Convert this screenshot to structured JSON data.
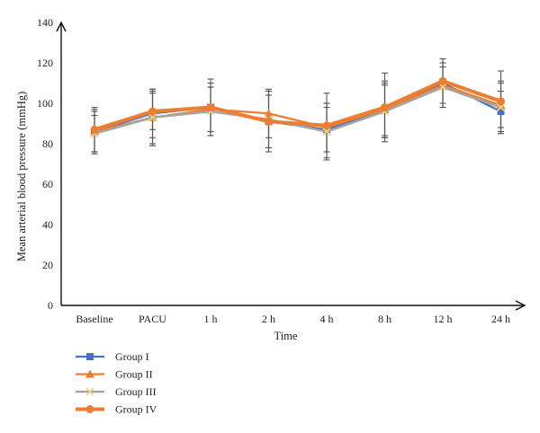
{
  "chart_data": {
    "type": "line",
    "xlabel": "Time",
    "ylabel": "Mean arterial blood pressure (mmHg)",
    "ylim": [
      0,
      140
    ],
    "yticks": [
      0,
      20,
      40,
      60,
      80,
      100,
      120,
      140
    ],
    "categories": [
      "Baseline",
      "PACU",
      "1 h",
      "2 h",
      "4 h",
      "8 h",
      "12 h",
      "24 h"
    ],
    "grid": false,
    "legend_position": "bottom-left",
    "error_bars": true,
    "series": [
      {
        "name": "Group I",
        "color": "#4472C4",
        "marker": "square",
        "values": [
          86,
          95,
          98,
          91,
          87,
          97,
          110,
          96
        ],
        "error": [
          11,
          12,
          12,
          13,
          11,
          13,
          12,
          10
        ]
      },
      {
        "name": "Group II",
        "color": "#ED7D31",
        "marker": "triangle",
        "values": [
          86,
          93,
          97,
          95,
          88,
          97,
          109,
          99
        ],
        "error": [
          10,
          13,
          11,
          12,
          12,
          14,
          11,
          11
        ]
      },
      {
        "name": "Group III",
        "color": "#A5A5A5",
        "marker": "x",
        "values": [
          85,
          93,
          96,
          92,
          86,
          96,
          108,
          98
        ],
        "error": [
          9,
          14,
          12,
          14,
          14,
          13,
          10,
          13
        ]
      },
      {
        "name": "Group IV",
        "color": "#ED7D31",
        "marker": "circle",
        "values": [
          87,
          96,
          98,
          91,
          89,
          98,
          111,
          101
        ],
        "error": [
          11,
          9,
          14,
          15,
          16,
          17,
          11,
          15
        ]
      }
    ]
  }
}
